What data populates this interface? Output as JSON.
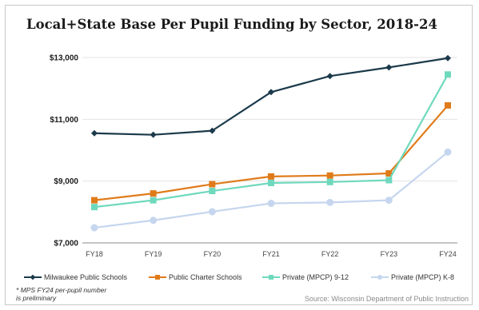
{
  "chart_data": {
    "type": "line",
    "title": "Local+State Base Per Pupil Funding by Sector, 2018-24",
    "categories": [
      "FY18",
      "FY19",
      "FY20",
      "FY21",
      "FY22",
      "FY23",
      "FY24"
    ],
    "y_ticks": [
      "$7,000",
      "$9,000",
      "$11,000",
      "$13,000"
    ],
    "ylim": [
      7000,
      13000
    ],
    "grid": "horizontal",
    "legend_position": "bottom",
    "series": [
      {
        "name": "Milwaukee Public Schools",
        "color": "#1b3a4b",
        "marker": "diamond",
        "values": [
          10550,
          10500,
          10630,
          11880,
          12400,
          12680,
          12980
        ]
      },
      {
        "name": "Public Charter Schools",
        "color": "#e07b1a",
        "marker": "square",
        "values": [
          8380,
          8600,
          8900,
          9150,
          9180,
          9250,
          11450
        ]
      },
      {
        "name": "Private (MPCP) 9-12",
        "color": "#6fd9bd",
        "marker": "square",
        "values": [
          8160,
          8380,
          8680,
          8940,
          8970,
          9030,
          12450
        ]
      },
      {
        "name": "Private (MPCP) K-8",
        "color": "#c6d6ee",
        "marker": "circle",
        "values": [
          7490,
          7730,
          8010,
          8280,
          8310,
          8380,
          9940
        ]
      }
    ],
    "note": "* MPS FY24 per-pupil number is preliminary",
    "source": "Source: Wisconsin Department of Public Instruction"
  }
}
